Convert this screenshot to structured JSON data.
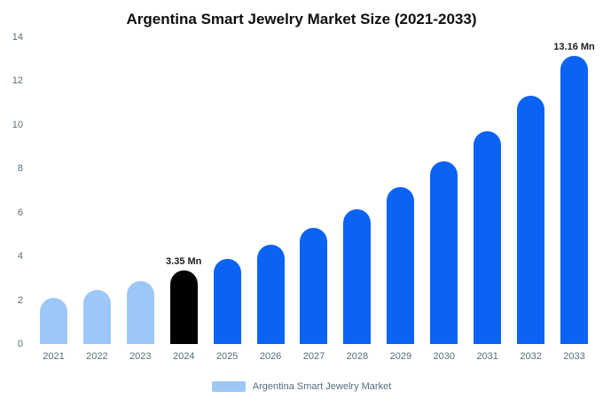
{
  "title": "Argentina Smart Jewelry Market Size (2021-2033)",
  "chart_data": {
    "type": "bar",
    "title": "Argentina Smart Jewelry Market Size (2021-2033)",
    "categories": [
      "2021",
      "2022",
      "2023",
      "2024",
      "2025",
      "2026",
      "2027",
      "2028",
      "2029",
      "2030",
      "2031",
      "2032",
      "2033"
    ],
    "values": [
      2.12,
      2.47,
      2.88,
      3.35,
      3.9,
      4.54,
      5.29,
      6.16,
      7.17,
      8.35,
      9.72,
      11.31,
      13.16
    ],
    "point_labels": [
      "",
      "",
      "",
      "3.35 Mn",
      "",
      "",
      "",
      "",
      "",
      "",
      "",
      "",
      "13.16 Mn"
    ],
    "bar_colors": [
      "#9cc8f7",
      "#9cc8f7",
      "#9cc8f7",
      "#000000",
      "#0b63f5",
      "#0b63f5",
      "#0b63f5",
      "#0b63f5",
      "#0b63f5",
      "#0b63f5",
      "#0b63f5",
      "#0b63f5",
      "#0b63f5"
    ],
    "xlabel": "",
    "ylabel": "",
    "ylim": [
      0,
      14
    ],
    "yticks": [
      0,
      2,
      4,
      6,
      8,
      10,
      12,
      14
    ],
    "grid": false,
    "legend_position": "bottom",
    "legend": [
      {
        "label": "Argentina Smart Jewelry Market",
        "color": "#9cc8f7"
      }
    ]
  },
  "colors": {
    "highlight_bar": "#000000",
    "forecast_bar": "#0b63f5",
    "history_bar": "#9cc8f7",
    "axis_text": "#546e7a",
    "title_text": "#0f0f0f"
  }
}
